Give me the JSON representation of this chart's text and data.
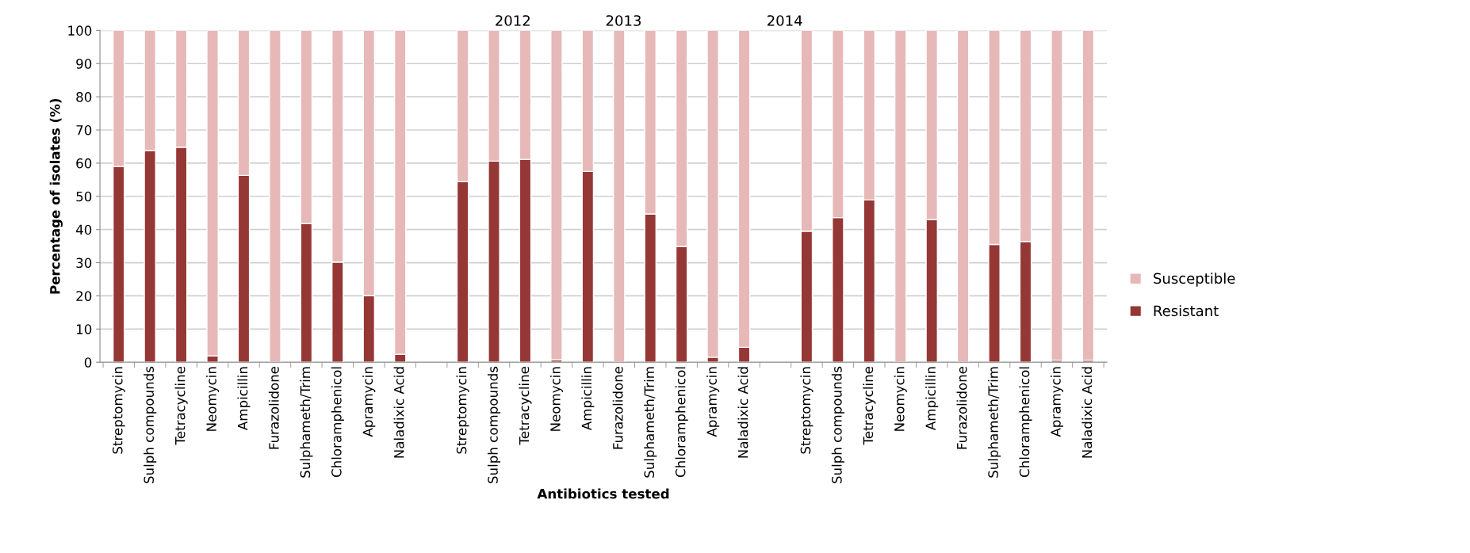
{
  "chart_data": {
    "type": "bar",
    "stacked": true,
    "xlabel": "Antibiotics tested",
    "ylabel": "Percentage of isolates (%)",
    "annotations": [
      "2012",
      "2013",
      "2014"
    ],
    "categories": [
      "Streptomycin",
      "Sulph compounds",
      "Tetracycline",
      "Neomycin",
      "Ampicillin",
      "Furazolidone",
      "Sulphameth/Trim",
      "Chloramphenicol",
      "Apramycin",
      "Naladixic Acid",
      null,
      "Streptomycin",
      "Sulph compounds",
      "Tetracycline",
      "Neomycin",
      "Ampicillin",
      "Furazolidone",
      "Sulphameth/Trim",
      "Chloramphenicol",
      "Apramycin",
      "Naladixic Acid",
      null,
      "Streptomycin",
      "Sulph compounds",
      "Tetracycline",
      "Neomycin",
      "Ampicillin",
      "Furazolidone",
      "Sulphameth/Trim",
      "Chloramphenicol",
      "Apramycin",
      "Naladixic Acid"
    ],
    "series": [
      {
        "name": "Resistant",
        "color": "#953735",
        "values": [
          59,
          63.8,
          64.8,
          1.9,
          56.3,
          null,
          41.8,
          30.2,
          20.1,
          2.4,
          null,
          54.4,
          60.6,
          61.1,
          0.7,
          57.5,
          0,
          44.7,
          34.9,
          1.5,
          4.5,
          null,
          39.5,
          43.6,
          48.9,
          0,
          43,
          0,
          35.5,
          36.4,
          0.6,
          0.6
        ]
      },
      {
        "name": "Susceptible",
        "color": "#e6b8b7",
        "values": [
          41,
          36.2,
          35.2,
          98.1,
          43.7,
          100,
          58.2,
          69.8,
          79.9,
          97.6,
          null,
          45.6,
          39.4,
          38.9,
          99.3,
          42.5,
          100,
          55.3,
          65.1,
          98.5,
          95.5,
          null,
          60.5,
          56.4,
          51.1,
          100,
          57,
          100,
          64.5,
          63.6,
          99.4,
          99.4
        ]
      }
    ],
    "ylim": [
      0,
      100
    ],
    "yticks": [
      0,
      10,
      20,
      30,
      40,
      50,
      60,
      70,
      80,
      90,
      100
    ],
    "grid": "y",
    "legend": "right"
  }
}
